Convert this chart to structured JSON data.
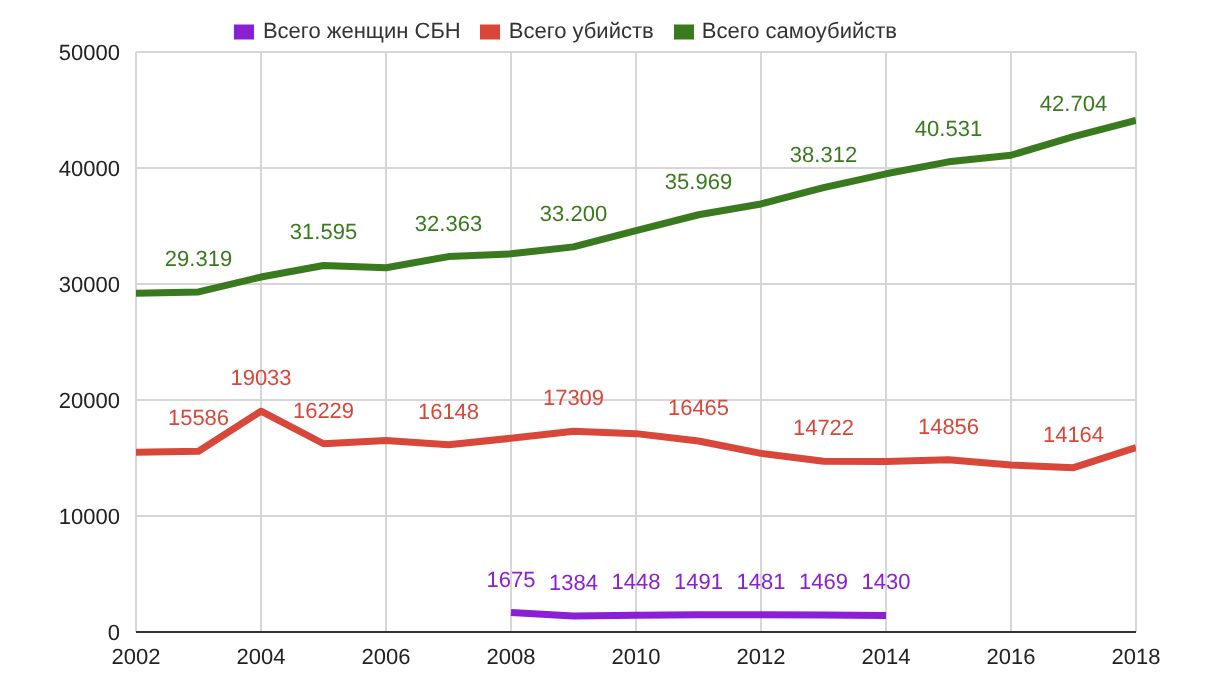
{
  "chart_data": {
    "type": "line",
    "x": [
      2002,
      2003,
      2004,
      2005,
      2006,
      2007,
      2008,
      2009,
      2010,
      2011,
      2012,
      2013,
      2014,
      2015,
      2016,
      2017,
      2018
    ],
    "series": [
      {
        "name": "Всего женщин СБН",
        "color": "#8a1fd6",
        "values": [
          null,
          null,
          null,
          null,
          null,
          null,
          1675,
          1384,
          1448,
          1491,
          1481,
          1469,
          1430,
          null,
          null,
          null,
          null
        ],
        "value_labels": [
          null,
          null,
          null,
          null,
          null,
          null,
          "1675",
          "1384",
          "1448",
          "1491",
          "1481",
          "1469",
          "1430",
          null,
          null,
          null,
          null
        ]
      },
      {
        "name": "Всего убийств",
        "color": "#d9473a",
        "values": [
          15500,
          15586,
          19033,
          16229,
          16500,
          16148,
          16700,
          17309,
          17100,
          16465,
          15400,
          14722,
          14700,
          14856,
          14400,
          14164,
          15900
        ],
        "value_labels": [
          null,
          "15586",
          "19033",
          "16229",
          null,
          "16148",
          null,
          "17309",
          null,
          "16465",
          null,
          "14722",
          null,
          "14856",
          null,
          "14164",
          null
        ]
      },
      {
        "name": "Всего самоубийств",
        "color": "#3a7a1e",
        "values": [
          29200,
          29319,
          30600,
          31595,
          31400,
          32363,
          32600,
          33200,
          34600,
          35969,
          36900,
          38312,
          39500,
          40531,
          41100,
          42704,
          44100
        ],
        "value_labels": [
          null,
          "29.319",
          null,
          "31.595",
          null,
          "32.363",
          null,
          "33.200",
          null,
          "35.969",
          null,
          "38.312",
          null,
          "40.531",
          null,
          "42.704",
          null
        ]
      }
    ],
    "xlim": [
      2002,
      2018
    ],
    "xticks": [
      2002,
      2004,
      2006,
      2008,
      2010,
      2012,
      2014,
      2016,
      2018
    ],
    "ylim": [
      0,
      50000
    ],
    "yticks": [
      0,
      10000,
      20000,
      30000,
      40000,
      50000
    ],
    "grid": true,
    "legend": "top",
    "marker": "none",
    "line_style": "solid"
  }
}
